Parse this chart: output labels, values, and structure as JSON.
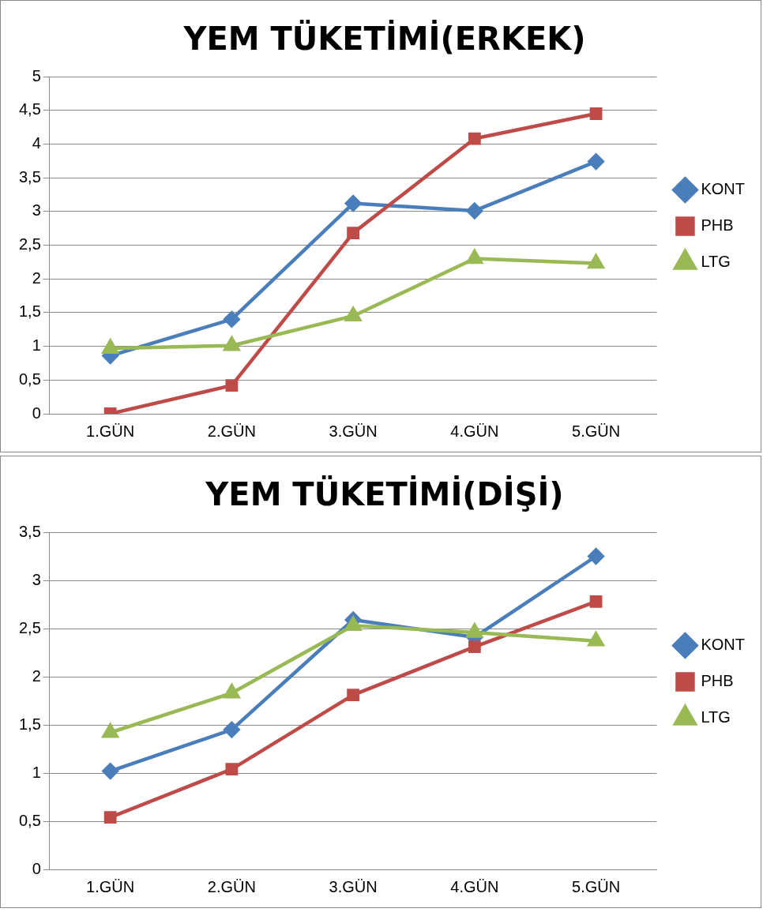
{
  "chart_data": [
    {
      "type": "line",
      "title": "YEM TÜKETİMİ(ERKEK)",
      "categories": [
        "1.GÜN",
        "2.GÜN",
        "3.GÜN",
        "4.GÜN",
        "5.GÜN"
      ],
      "series": [
        {
          "name": "KONT",
          "color": "#4a7ebb",
          "marker": "diamond",
          "values": [
            0.86,
            1.4,
            3.12,
            3.01,
            3.74
          ]
        },
        {
          "name": "PHB",
          "color": "#be4b48",
          "marker": "square",
          "values": [
            0,
            0.42,
            2.68,
            4.08,
            4.45
          ]
        },
        {
          "name": "LTG",
          "color": "#98b954",
          "marker": "triangle",
          "values": [
            0.97,
            1.01,
            1.45,
            2.3,
            2.23
          ]
        }
      ],
      "ylim": [
        0,
        5
      ],
      "yticks": [
        0,
        {
          "value": 0.5,
          "label": "0,5"
        },
        1,
        {
          "value": 1.5,
          "label": "1,5"
        },
        2,
        {
          "value": 2.5,
          "label": "2,5"
        },
        3,
        {
          "value": 3.5,
          "label": "3,5"
        },
        4,
        {
          "value": 4.5,
          "label": "4,5"
        },
        5
      ],
      "grid": "y",
      "legend": "right",
      "line_style": "solid"
    },
    {
      "type": "line",
      "title": "YEM TÜKETİMİ(DİŞİ)",
      "categories": [
        "1.GÜN",
        "2.GÜN",
        "3.GÜN",
        "4.GÜN",
        "5.GÜN"
      ],
      "series": [
        {
          "name": "KONT",
          "color": "#4a7ebb",
          "marker": "diamond",
          "values": [
            1.02,
            1.45,
            2.59,
            2.41,
            3.25
          ]
        },
        {
          "name": "PHB",
          "color": "#be4b48",
          "marker": "square",
          "values": [
            0.54,
            1.04,
            1.81,
            2.31,
            2.78
          ]
        },
        {
          "name": "LTG",
          "color": "#98b954",
          "marker": "triangle",
          "values": [
            1.42,
            1.83,
            2.53,
            2.46,
            2.37
          ]
        }
      ],
      "ylim": [
        0,
        3.5
      ],
      "yticks": [
        0,
        {
          "value": 0.5,
          "label": "0,5"
        },
        1,
        {
          "value": 1.5,
          "label": "1,5"
        },
        2,
        {
          "value": 2.5,
          "label": "2,5"
        },
        3,
        {
          "value": 3.5,
          "label": "3,5"
        }
      ],
      "grid": "y",
      "legend": "right",
      "line_style": "solid"
    }
  ]
}
